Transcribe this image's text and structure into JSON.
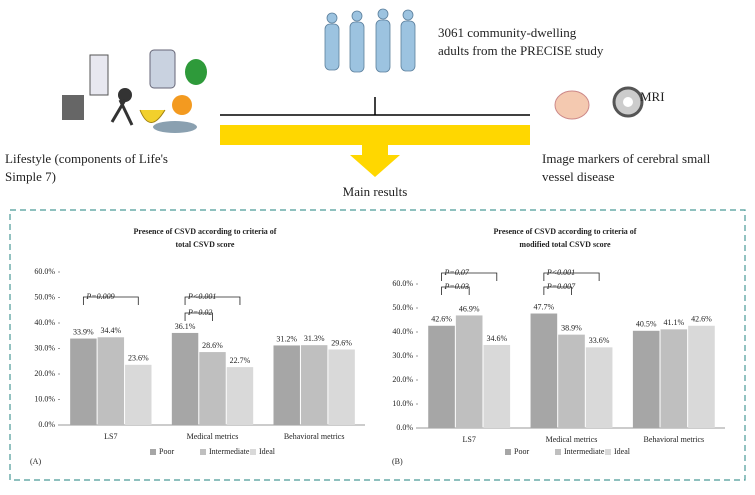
{
  "diagram": {
    "population": [
      "3061 community-dwelling",
      "adults from the PRECISE study"
    ],
    "mri": "MRI",
    "lifestyle": [
      "Lifestyle (components of  Life's",
      "Simple 7)"
    ],
    "markers": [
      "Image markers of cerebral small",
      "vessel disease"
    ],
    "results": "Main results"
  },
  "chart_data": [
    {
      "type": "bar",
      "panel": "(A)",
      "title": [
        "Presence of CSVD according to criteria of",
        "total CSVD score"
      ],
      "categories": [
        "LS7",
        "Medical metrics",
        "Behavioral metrics"
      ],
      "series": [
        {
          "name": "Poor",
          "color": "#a6a6a6",
          "values": [
            33.9,
            36.1,
            31.2
          ],
          "value_labels": [
            "33.9%",
            "36.1%",
            "31.2%"
          ]
        },
        {
          "name": "Intermediate",
          "color": "#bfbfbf",
          "values": [
            34.4,
            28.6,
            31.3
          ],
          "value_labels": [
            "34.4%",
            "28.6%",
            "31.3%"
          ]
        },
        {
          "name": "Ideal",
          "color": "#d9d9d9",
          "values": [
            23.6,
            22.7,
            29.6
          ],
          "value_labels": [
            "23.6%",
            "22.7%",
            "29.6%"
          ]
        }
      ],
      "ylim": [
        0,
        60
      ],
      "yticks": [
        {
          "value": 0,
          "label": "0.0%"
        },
        {
          "value": 10,
          "label": "10.0%"
        },
        {
          "value": 20,
          "label": "20.0%"
        },
        {
          "value": 30,
          "label": "30.0%"
        },
        {
          "value": 40,
          "label": "40.0%"
        },
        {
          "value": 50,
          "label": "50.0%"
        },
        {
          "value": 60,
          "label": "60.0%"
        }
      ],
      "annotations": [
        "P=0.009",
        "P<0.001",
        "P=0.02"
      ]
    },
    {
      "type": "bar",
      "panel": "(B)",
      "title": [
        "Presence of CSVD according to criteria of",
        "modified total CSVD score"
      ],
      "categories": [
        "LS7",
        "Medical metrics",
        "Behavioral metrics"
      ],
      "series": [
        {
          "name": "Poor",
          "color": "#a6a6a6",
          "values": [
            42.6,
            47.7,
            40.5
          ],
          "value_labels": [
            "42.6%",
            "47.7%",
            "40.5%"
          ]
        },
        {
          "name": "Intermediate",
          "color": "#bfbfbf",
          "values": [
            46.9,
            38.9,
            41.1
          ],
          "value_labels": [
            "46.9%",
            "38.9%",
            "41.1%"
          ]
        },
        {
          "name": "Ideal",
          "color": "#d9d9d9",
          "values": [
            34.6,
            33.6,
            42.6
          ],
          "value_labels": [
            "34.6%",
            "33.6%",
            "42.6%"
          ]
        }
      ],
      "ylim": [
        0,
        60
      ],
      "yticks": [
        {
          "value": 0,
          "label": "0.0%"
        },
        {
          "value": 10,
          "label": "10.0%"
        },
        {
          "value": 20,
          "label": "20.0%"
        },
        {
          "value": 30,
          "label": "30.0%"
        },
        {
          "value": 40,
          "label": "40.0%"
        },
        {
          "value": 50,
          "label": "50.0%"
        },
        {
          "value": 60,
          "label": "60.0%"
        }
      ],
      "annotations": [
        "P=0.07",
        "P=0.03",
        "P<0.001",
        "P=0.007"
      ]
    }
  ]
}
